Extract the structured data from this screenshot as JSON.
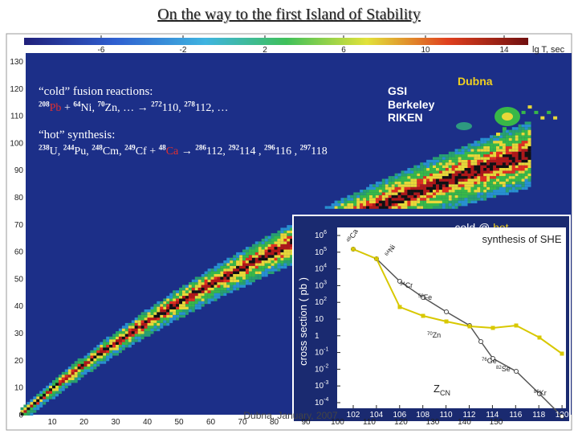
{
  "title": "On the way to the first  Island of Stability",
  "colorbar": {
    "ticks": [
      "-6",
      "-2",
      "2",
      "6",
      "10",
      "14"
    ],
    "label": "lg T, sec"
  },
  "y_axis": {
    "labels": [
      "130",
      "120",
      "110",
      "100",
      "90",
      "80",
      "70",
      "60",
      "50",
      "40",
      "30",
      "20",
      "10",
      "0"
    ]
  },
  "x_axis": {
    "labels": [
      "10",
      "20",
      "30",
      "40",
      "50",
      "60",
      "70",
      "80",
      "90",
      "100",
      "110",
      "120",
      "130",
      "140",
      "150"
    ]
  },
  "cold": {
    "heading": "“cold” fusion reactions:",
    "parts": [
      {
        "sup": "208"
      },
      {
        "text": "Pb",
        "hl": true
      },
      {
        "text": " + "
      },
      {
        "sup": "64"
      },
      {
        "text": "Ni, "
      },
      {
        "sup": "70"
      },
      {
        "text": "Zn, … → "
      },
      {
        "sup": "272"
      },
      {
        "text": "110, "
      },
      {
        "sup": "278"
      },
      {
        "text": "112, …"
      }
    ]
  },
  "hot": {
    "heading": "“hot” synthesis:",
    "parts": [
      {
        "sup": "238"
      },
      {
        "text": "U, "
      },
      {
        "sup": "244"
      },
      {
        "text": "Pu, "
      },
      {
        "sup": "248"
      },
      {
        "text": "Cm, "
      },
      {
        "sup": "249"
      },
      {
        "text": "Cf + "
      },
      {
        "sup": "48"
      },
      {
        "text": "Ca",
        "hl": true
      },
      {
        "text": " → "
      },
      {
        "sup": "286"
      },
      {
        "text": "112, "
      },
      {
        "sup": "292"
      },
      {
        "text": "114 , "
      },
      {
        "sup": "296"
      },
      {
        "text": "116 , "
      },
      {
        "sup": "297"
      },
      {
        "text": "118"
      }
    ]
  },
  "labs": [
    "GSI",
    "Berkeley",
    "RIKEN",
    "Dubna"
  ],
  "inset": {
    "title_parts": [
      {
        "text": "cold @ "
      },
      {
        "text": "hot",
        "hl": true
      }
    ],
    "subtitle": "synthesis of SHE",
    "y_label": "cross section   ( pb )",
    "x_label": {
      "text": "Z",
      "sub": "CN"
    },
    "y_ticks": [
      {
        "base": "10",
        "sup": "6"
      },
      {
        "base": "10",
        "sup": "5"
      },
      {
        "base": "10",
        "sup": "4"
      },
      {
        "base": "10",
        "sup": "3"
      },
      {
        "base": "10",
        "sup": "2"
      },
      {
        "base": "10"
      },
      {
        "base": "1"
      },
      {
        "base": "10",
        "sup": "-1"
      },
      {
        "base": "10",
        "sup": "-2"
      },
      {
        "base": "10",
        "sup": "-3"
      },
      {
        "base": "10",
        "sup": "-4"
      }
    ],
    "x_ticks": [
      "102",
      "104",
      "106",
      "108",
      "110",
      "112",
      "114",
      "116",
      "118",
      "120"
    ],
    "annotations": [
      {
        "sup": "48",
        "text": "Ca"
      },
      {
        "sup": "64",
        "text": "Ni"
      },
      {
        "sup": "54",
        "text": "Cr"
      },
      {
        "sup": "58",
        "text": "Fe"
      },
      {
        "sup": "70",
        "text": "Zn"
      },
      {
        "sup": "76",
        "text": "Ge"
      },
      {
        "sup": "82",
        "text": "Se"
      },
      {
        "sup": "86",
        "text": "Kr"
      }
    ]
  },
  "footer": "Dubna, January, 2007"
}
